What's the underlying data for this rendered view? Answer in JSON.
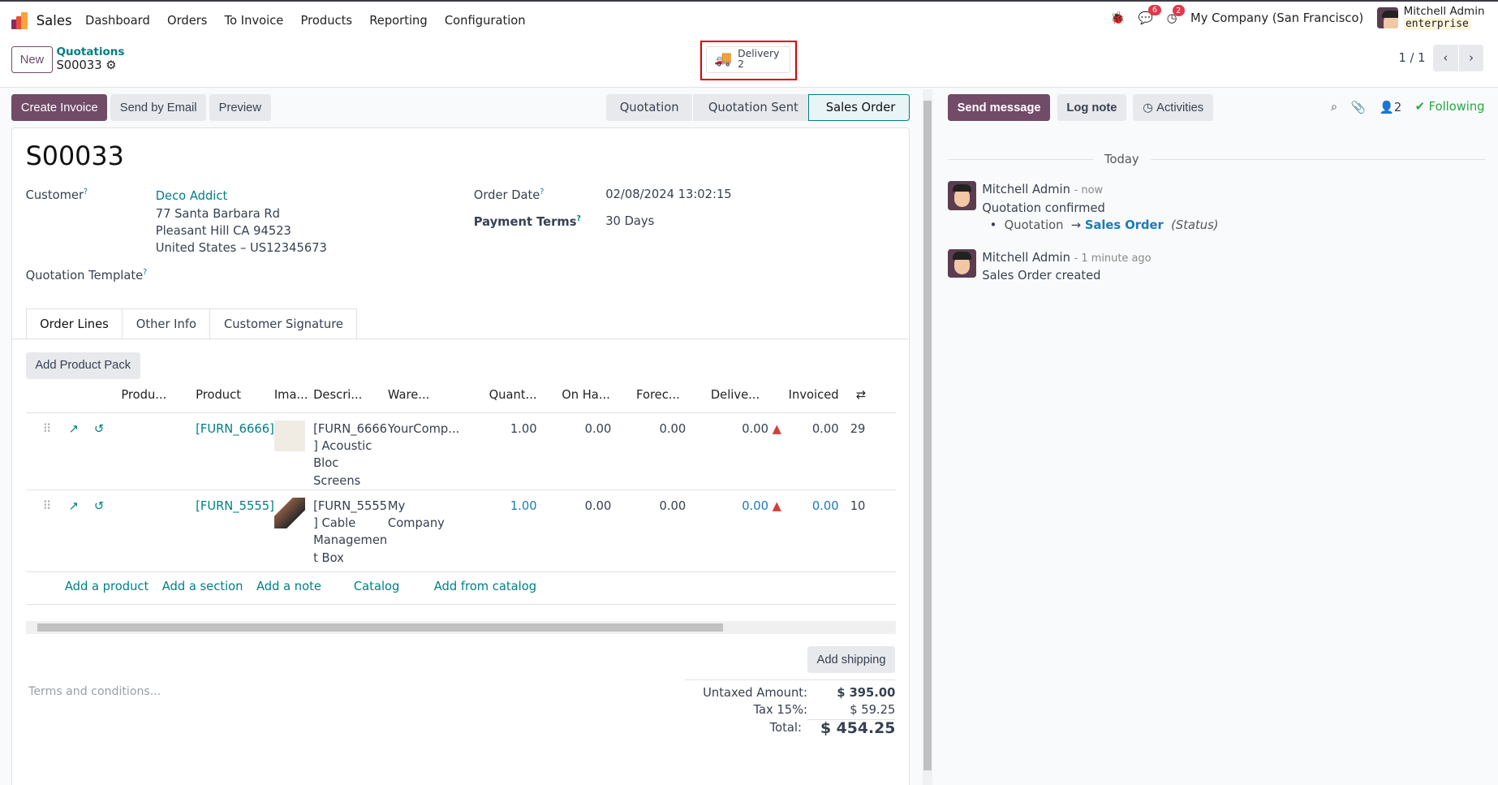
{
  "nav": {
    "app": "Sales",
    "menu": [
      "Dashboard",
      "Orders",
      "To Invoice",
      "Products",
      "Reporting",
      "Configuration"
    ],
    "messages_count": "6",
    "activities_count": "2",
    "company": "My Company (San Francisco)",
    "user": "Mitchell Admin",
    "db": "enterprise"
  },
  "control": {
    "new": "New",
    "breadcrumb": "Quotations",
    "record": "S00033",
    "delivery_label": "Delivery",
    "delivery_count": "2",
    "pager": "1 / 1"
  },
  "actions": {
    "create_invoice": "Create Invoice",
    "send_email": "Send by Email",
    "preview": "Preview"
  },
  "status": {
    "steps": [
      "Quotation",
      "Quotation Sent",
      "Sales Order"
    ],
    "current": "Sales Order"
  },
  "form": {
    "name": "S00033",
    "customer_label": "Customer",
    "customer": "Deco Addict",
    "address": [
      "77 Santa Barbara Rd",
      "Pleasant Hill CA 94523",
      "United States – US12345673"
    ],
    "template_label": "Quotation Template",
    "order_date_label": "Order Date",
    "order_date": "02/08/2024 13:02:15",
    "terms_label": "Payment Terms",
    "terms": "30 Days"
  },
  "tabs": [
    "Order Lines",
    "Other Info",
    "Customer Signature"
  ],
  "lines": {
    "add_pack": "Add Product Pack",
    "headers": [
      "Produ...",
      "Product",
      "Ima...",
      "Descri...",
      "Ware...",
      "Quant...",
      "On Ha...",
      "Forec...",
      "Delive...",
      "Invoiced"
    ],
    "rows": [
      {
        "product": "[FURN_6666]",
        "description": [
          "[FURN_6666",
          "] Acoustic",
          "Bloc Screens"
        ],
        "warehouse": "YourComp...",
        "qty": "1.00",
        "onhand": "0.00",
        "forecast": "0.00",
        "delivered": "0.00",
        "invoiced": "0.00",
        "extra": "29"
      },
      {
        "product": "[FURN_5555]",
        "description": [
          "[FURN_5555",
          "] Cable",
          "Managemen",
          "t Box"
        ],
        "warehouse": "My Company",
        "qty": "1.00",
        "onhand": "0.00",
        "forecast": "0.00",
        "delivered": "0.00",
        "invoiced": "0.00",
        "extra": "10"
      }
    ],
    "links": [
      "Add a product",
      "Add a section",
      "Add a note",
      "Catalog",
      "Add from catalog"
    ]
  },
  "footer": {
    "add_shipping": "Add shipping",
    "terms_placeholder": "Terms and conditions...",
    "untaxed_label": "Untaxed Amount:",
    "untaxed": "$ 395.00",
    "tax_label": "Tax 15%:",
    "tax": "$ 59.25",
    "total_label": "Total:",
    "total": "$ 454.25"
  },
  "chatter": {
    "send": "Send message",
    "log": "Log note",
    "activities": "Activities",
    "followers": "2",
    "following": "Following",
    "today": "Today",
    "messages": [
      {
        "author": "Mitchell Admin",
        "time": "- now",
        "body": "Quotation confirmed",
        "old": "Quotation",
        "new": "Sales Order",
        "field": "(Status)"
      },
      {
        "author": "Mitchell Admin",
        "time": "- 1 minute ago",
        "body": "Sales Order created"
      }
    ]
  },
  "colors": {
    "primary": "#714b67",
    "link": "#017e84",
    "highlight": "#e8f4f5"
  }
}
